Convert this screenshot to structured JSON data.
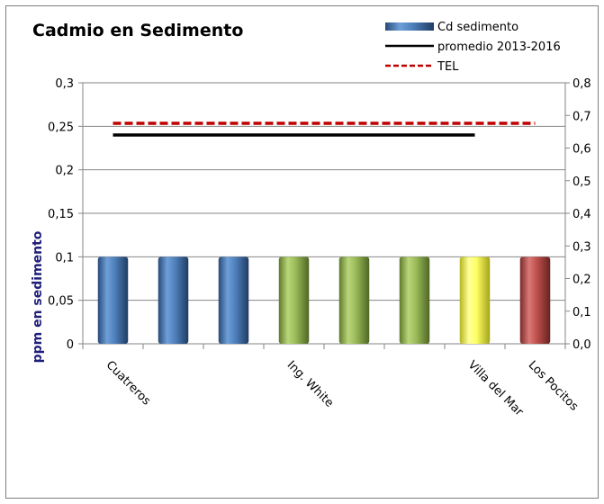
{
  "chart_data": {
    "type": "bar",
    "title": "Cadmio en Sedimento",
    "ylabel": "ppm en sedimento",
    "xlabel": "",
    "ylim": [
      0,
      0.3
    ],
    "yticks": [
      "0",
      "0,05",
      "0,1",
      "0,15",
      "0,2",
      "0,25",
      "0,3"
    ],
    "y2lim": [
      0,
      0.8
    ],
    "y2ticks": [
      "0,0",
      "0,1",
      "0,2",
      "0,3",
      "0,4",
      "0,5",
      "0,6",
      "0,7",
      "0,8"
    ],
    "categories": [
      "Cuatreros",
      "",
      "",
      "Ing. White",
      "",
      "",
      "Villa del Mar",
      "Los Pocitos"
    ],
    "series": [
      {
        "name": "Cd sedimento",
        "type": "bar",
        "values": [
          0.1,
          0.1,
          0.1,
          0.1,
          0.1,
          0.1,
          0.1,
          0.1
        ],
        "colors": [
          "#4f81bd",
          "#4f81bd",
          "#4f81bd",
          "#9bbb59",
          "#9bbb59",
          "#9bbb59",
          "#ffff66",
          "#c0504d"
        ]
      },
      {
        "name": "promedio 2013-2016",
        "type": "line",
        "color": "#000000",
        "values": [
          0.24,
          0.24,
          0.24,
          0.24,
          0.24,
          0.24,
          0.24,
          null
        ]
      },
      {
        "name": "TEL",
        "type": "line",
        "dashed": true,
        "color": "#c00000",
        "values": [
          0.676,
          0.676,
          0.676,
          0.676,
          0.676,
          0.676,
          0.676,
          0.676
        ],
        "axis": "secondary"
      }
    ],
    "legend": "top-right",
    "grid": true
  }
}
